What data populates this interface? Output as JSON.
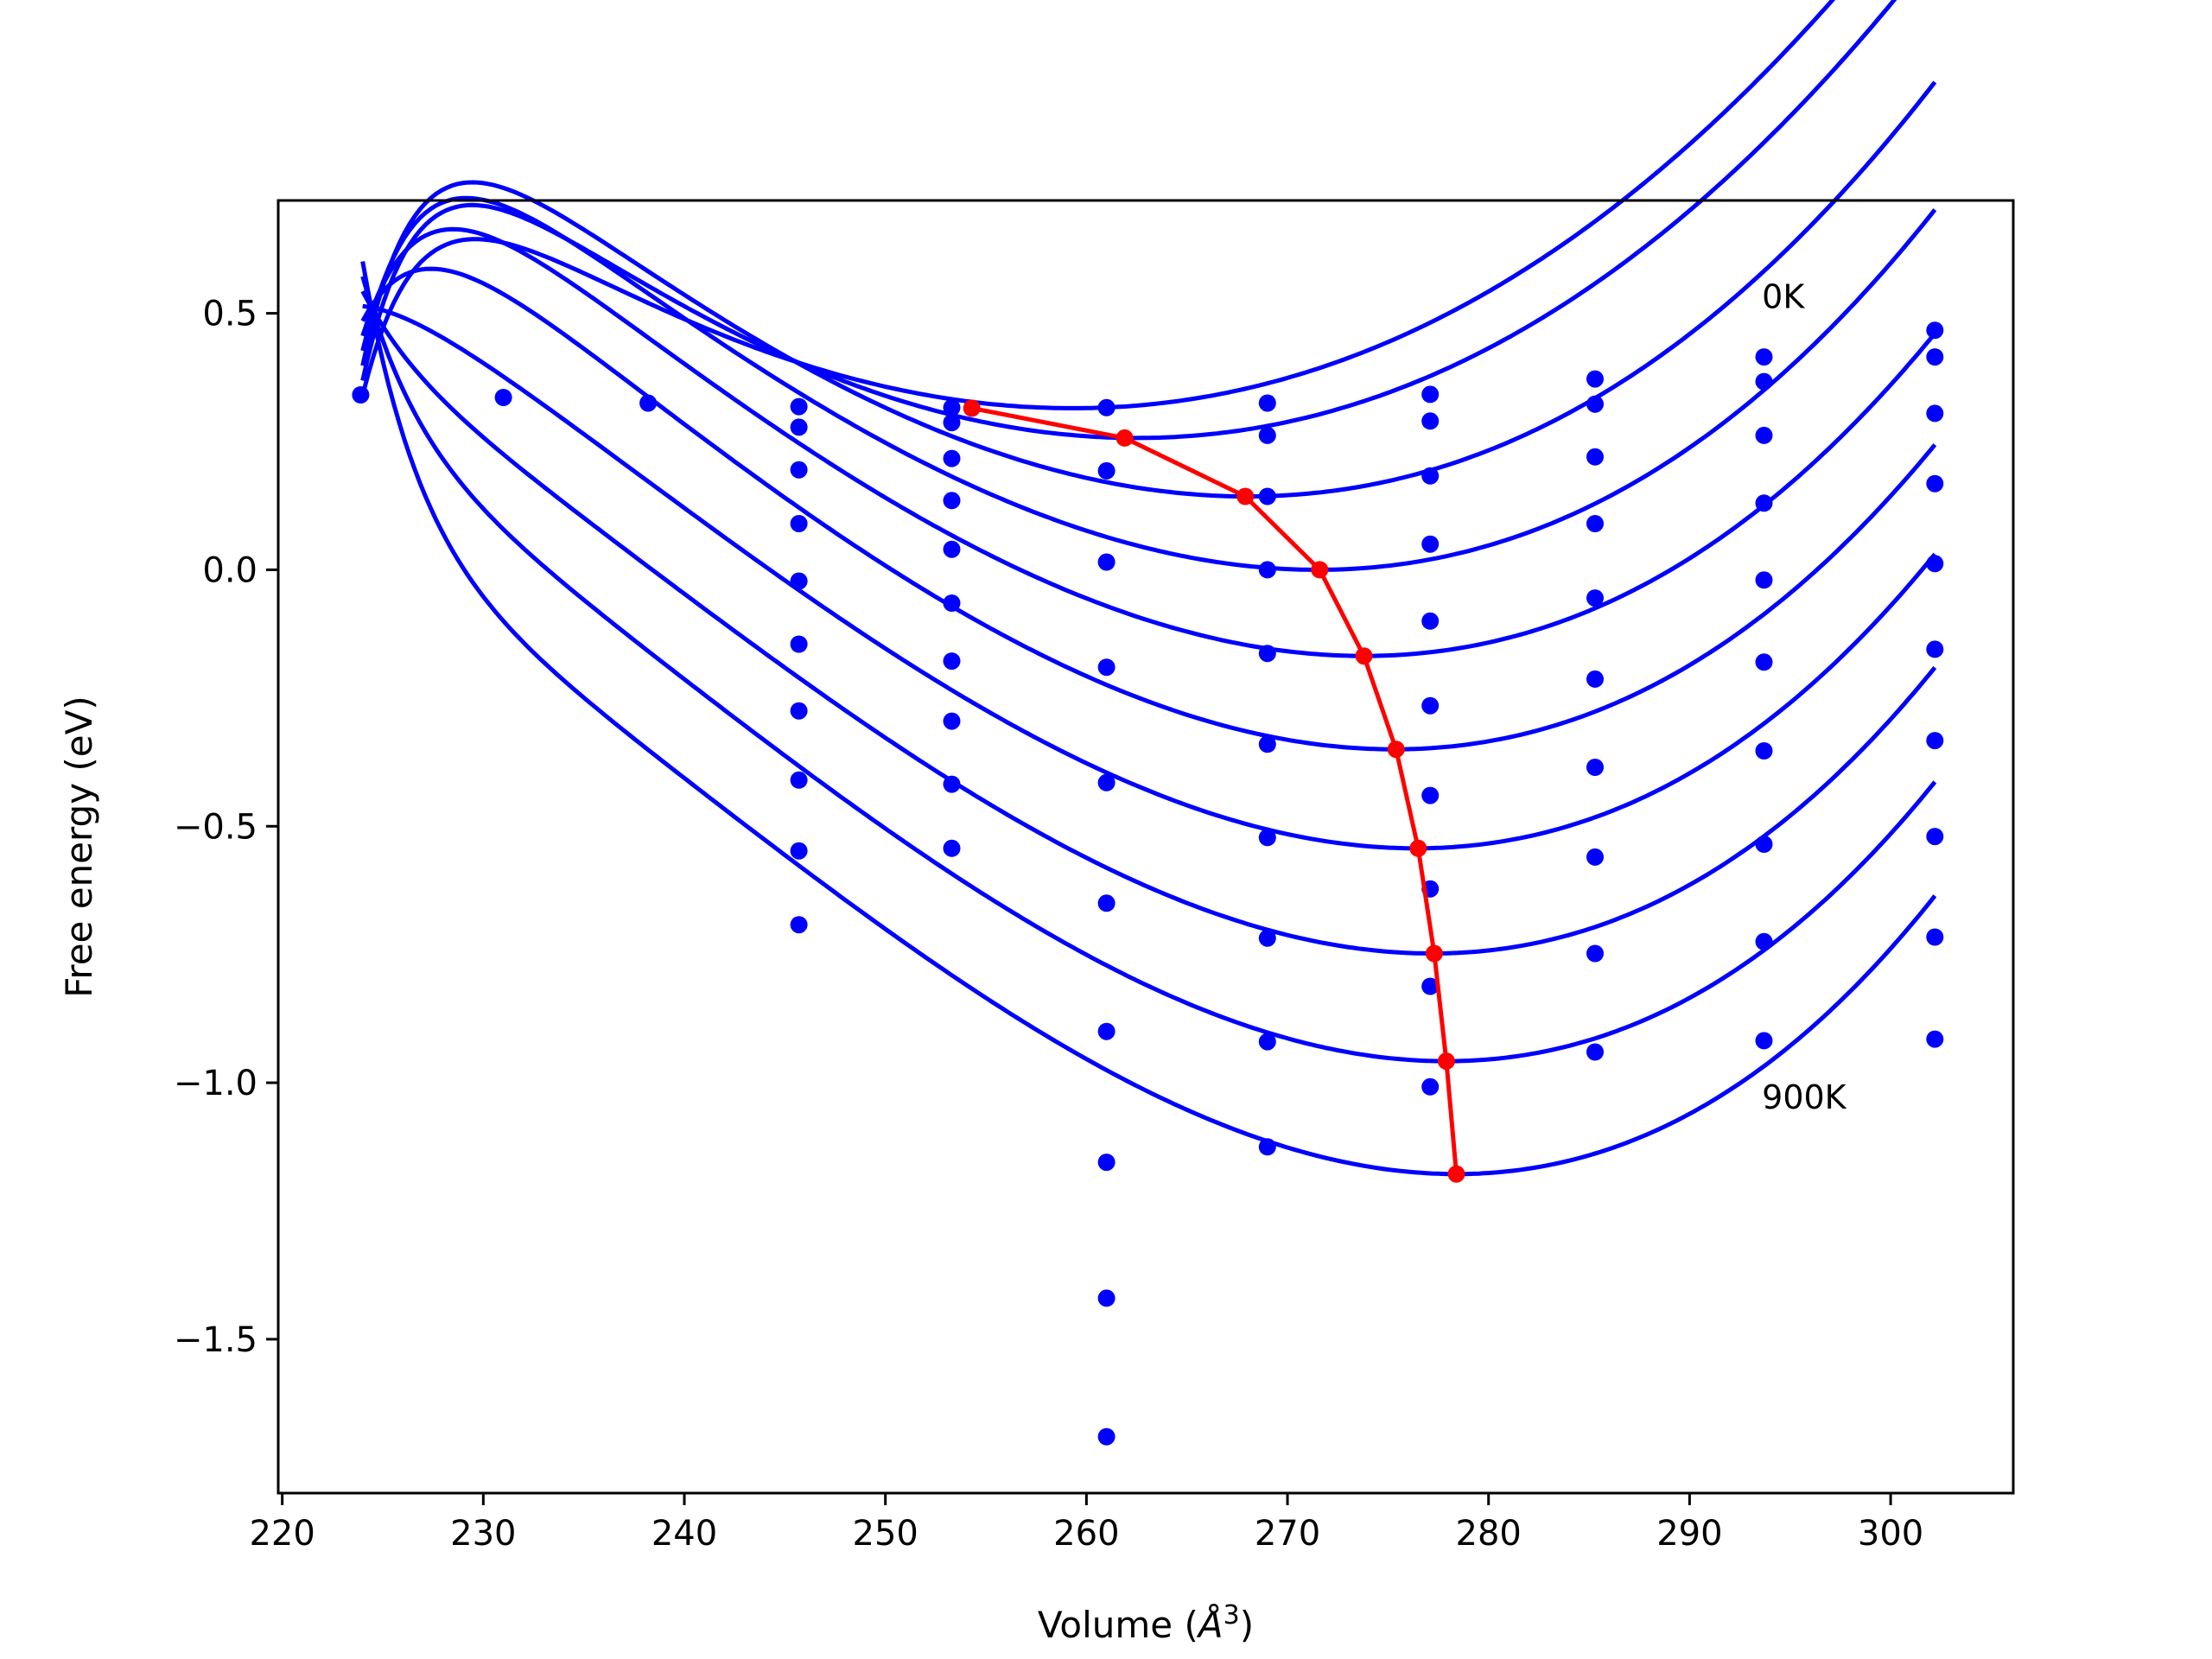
{
  "chart_data": {
    "type": "line",
    "title": "",
    "xlabel_parts": [
      "Volume (",
      "Å",
      "3",
      ")"
    ],
    "ylabel": "Free energy (eV)",
    "xlim": [
      219.8,
      306.1
    ],
    "ylim": [
      -1.8,
      0.72
    ],
    "x_ticks": [
      220,
      230,
      240,
      250,
      260,
      270,
      280,
      290,
      300
    ],
    "y_ticks": [
      0.5,
      0.0,
      -0.5,
      -1.0,
      -1.5
    ],
    "y_tick_labels": [
      "0.5",
      "0.0",
      "−0.5",
      "−1.0",
      "−1.5"
    ],
    "grid": false,
    "legend": "none",
    "colors": {
      "isotherms": "#0000ff",
      "equilibrium_path": "#ff0000",
      "axes": "#000000"
    },
    "annotations": [
      {
        "text": "0K",
        "x": 293.6,
        "y": 0.51
      },
      {
        "text": "900K",
        "x": 293.6,
        "y": -1.05
      }
    ],
    "fitted_curves": {
      "x_range": [
        224,
        302.2
      ],
      "series": [
        {
          "E0": 0.315,
          "V0": 259.3,
          "B": 0.0005,
          "c": 1.5e-06,
          "y224": 0.34
        },
        {
          "E0": 0.257,
          "V0": 262.5,
          "B": 0.000545,
          "c": 1.5e-06,
          "y224": 0.369
        },
        {
          "E0": 0.143,
          "V0": 268.0,
          "B": 0.000588,
          "c": 3e-06,
          "y224": 0.398
        },
        {
          "E0": 0.0,
          "V0": 271.5,
          "B": 0.000622,
          "c": 4e-06,
          "y224": 0.427
        },
        {
          "E0": -0.168,
          "V0": 273.8,
          "B": 0.000652,
          "c": 4.5e-06,
          "y224": 0.456
        },
        {
          "E0": -0.35,
          "V0": 275.3,
          "B": 0.000686,
          "c": 5e-06,
          "y224": 0.485
        },
        {
          "E0": -0.543,
          "V0": 276.4,
          "B": 0.000712,
          "c": 5.8e-06,
          "y224": 0.514
        },
        {
          "E0": -0.748,
          "V0": 277.2,
          "B": 0.000737,
          "c": 6.2e-06,
          "y224": 0.543
        },
        {
          "E0": -0.958,
          "V0": 277.9,
          "B": 0.000764,
          "c": 6.5e-06,
          "y224": 0.572
        },
        {
          "E0": -1.178,
          "V0": 278.4,
          "B": 0.000791,
          "c": 7e-06,
          "y224": 0.601
        }
      ]
    },
    "data_points": {
      "x": [
        223.9,
        231.0,
        238.2,
        245.7,
        253.3,
        261.0,
        269.0,
        277.1,
        285.3,
        293.7,
        302.2
      ],
      "series": [
        {
          "y": [
            0.341,
            0.336,
            0.325,
            0.318,
            0.316,
            0.316,
            0.325,
            0.342,
            0.372,
            0.415,
            0.467
          ]
        },
        {
          "y": [
            null,
            null,
            null,
            0.278,
            0.287,
            null,
            0.262,
            0.29,
            0.323,
            0.367,
            0.415
          ]
        },
        {
          "y": [
            null,
            null,
            null,
            0.195,
            0.217,
            0.193,
            0.143,
            0.183,
            0.22,
            0.262,
            0.305
          ]
        },
        {
          "y": [
            null,
            null,
            null,
            0.09,
            0.135,
            0.015,
            0.0,
            0.05,
            0.09,
            0.13,
            0.168
          ]
        },
        {
          "y": [
            null,
            null,
            null,
            -0.022,
            0.04,
            -0.19,
            -0.163,
            -0.1,
            -0.055,
            -0.02,
            0.012
          ]
        },
        {
          "y": [
            null,
            null,
            null,
            -0.145,
            -0.065,
            -0.415,
            -0.34,
            -0.265,
            -0.213,
            -0.18,
            -0.155
          ]
        },
        {
          "y": [
            null,
            null,
            null,
            -0.275,
            -0.178,
            -0.65,
            -0.522,
            -0.44,
            -0.385,
            -0.353,
            -0.333
          ]
        },
        {
          "y": [
            null,
            null,
            null,
            -0.41,
            -0.295,
            -0.9,
            -0.718,
            -0.622,
            -0.56,
            -0.535,
            -0.52
          ]
        },
        {
          "y": [
            null,
            null,
            null,
            -0.548,
            -0.418,
            -1.155,
            -0.92,
            -0.812,
            -0.748,
            -0.725,
            -0.716
          ]
        },
        {
          "y": [
            null,
            null,
            null,
            -0.692,
            -0.543,
            -1.42,
            -1.125,
            -1.008,
            -0.94,
            -0.918,
            -0.915
          ]
        },
        {
          "y": [
            null,
            null,
            null,
            null,
            null,
            -1.69,
            null,
            null,
            null,
            null,
            null
          ]
        }
      ]
    },
    "equilibrium_path": {
      "x": [
        254.3,
        261.9,
        267.9,
        271.6,
        273.8,
        275.4,
        276.5,
        277.3,
        277.9,
        278.4
      ],
      "y": [
        0.315,
        0.257,
        0.143,
        0.0,
        -0.168,
        -0.35,
        -0.543,
        -0.748,
        -0.958,
        -1.178
      ]
    }
  }
}
